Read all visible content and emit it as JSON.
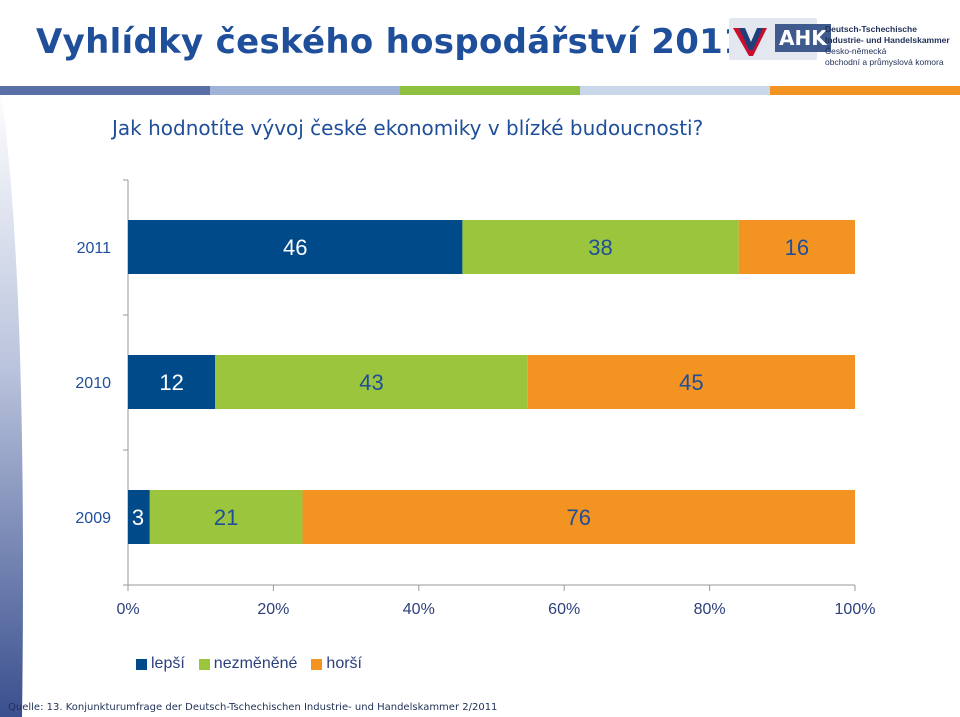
{
  "slide": {
    "title": "Vyhlídky českého hospodářství 2011",
    "question": "Jak hodnotíte vývoj české ekonomiky v blízké budoucnosti?",
    "source": "Quelle: 13. Konjunkturumfrage der Deutsch-Tschechischen Industrie- und Handelskammer 2/2011"
  },
  "logo": {
    "abbr": "AHK",
    "line1": "Deutsch-Tschechische",
    "line2": "Industrie- und Handelskammer",
    "line3": "Česko-německá",
    "line4": "obchodní a průmyslová komora"
  },
  "colors": {
    "lepsi": "#004a8a",
    "nezmenene": "#9bc53d",
    "horsi": "#f39322",
    "title": "#1f4e9a"
  },
  "chart_data": {
    "type": "bar",
    "orientation": "horizontal",
    "stacked": true,
    "categories": [
      "2011",
      "2010",
      "2009"
    ],
    "series": [
      {
        "name": "lepší",
        "values": [
          46,
          12,
          3
        ]
      },
      {
        "name": "nezměněné",
        "values": [
          38,
          43,
          21
        ]
      },
      {
        "name": "horší",
        "values": [
          16,
          45,
          76
        ]
      }
    ],
    "xlim": [
      0,
      100
    ],
    "xticks": [
      "0%",
      "20%",
      "40%",
      "60%",
      "80%",
      "100%"
    ],
    "grid": false,
    "legend": "bottom"
  }
}
